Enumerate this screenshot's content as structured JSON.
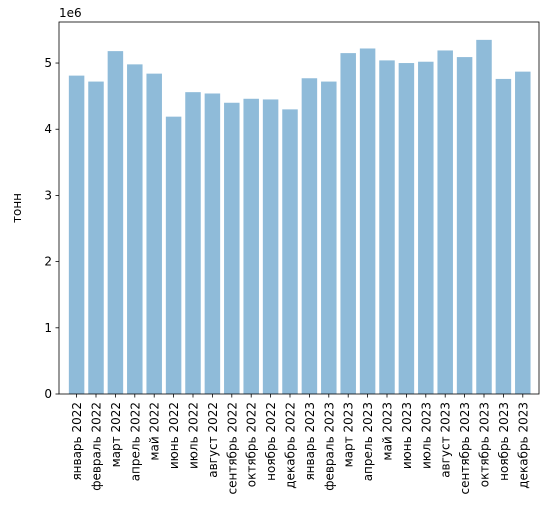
{
  "chart_data": {
    "type": "bar",
    "ylabel": "тонн",
    "y_exponent_label": "1e6",
    "yticks": [
      0,
      1,
      2,
      3,
      4,
      5
    ],
    "ylim": [
      0,
      5.62
    ],
    "grid": false,
    "bar_color": "#8fbbd9",
    "categories": [
      "январь 2022",
      "февраль 2022",
      "март 2022",
      "апрель 2022",
      "май 2022",
      "июнь 2022",
      "июль 2022",
      "август 2022",
      "сентябрь 2022",
      "октябрь 2022",
      "ноябрь 2022",
      "декабрь 2022",
      "январь 2023",
      "февраль 2023",
      "март 2023",
      "апрель 2023",
      "май 2023",
      "июнь 2023",
      "июль 2023",
      "август 2023",
      "сентябрь 2023",
      "октябрь 2023",
      "ноябрь 2023",
      "декабрь 2023"
    ],
    "values": [
      4.81,
      4.72,
      5.18,
      4.98,
      4.84,
      4.19,
      4.56,
      4.54,
      4.4,
      4.46,
      4.45,
      4.3,
      4.77,
      4.72,
      5.15,
      5.22,
      5.04,
      5.0,
      5.02,
      5.19,
      5.09,
      5.35,
      4.76,
      4.87
    ]
  }
}
